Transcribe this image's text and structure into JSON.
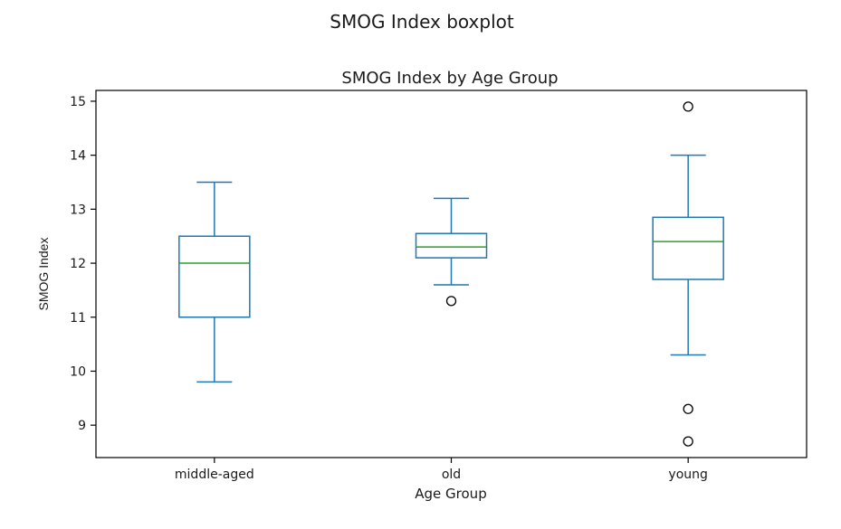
{
  "chart_data": {
    "type": "boxplot",
    "suptitle": "SMOG Index boxplot",
    "title": "SMOG Index by Age Group",
    "xlabel": "Age Group",
    "ylabel": "SMOG Index",
    "ylim": [
      8.4,
      15.2
    ],
    "yticks": [
      9,
      10,
      11,
      12,
      13,
      14,
      15
    ],
    "categories": [
      "middle-aged",
      "old",
      "young"
    ],
    "boxes": [
      {
        "category": "middle-aged",
        "whisker_low": 9.8,
        "q1": 11.0,
        "median": 12.0,
        "q3": 12.5,
        "whisker_high": 13.5,
        "outliers": []
      },
      {
        "category": "old",
        "whisker_low": 11.6,
        "q1": 12.1,
        "median": 12.3,
        "q3": 12.55,
        "whisker_high": 13.2,
        "outliers": [
          11.3
        ]
      },
      {
        "category": "young",
        "whisker_low": 10.3,
        "q1": 11.7,
        "median": 12.4,
        "q3": 12.85,
        "whisker_high": 14.0,
        "outliers": [
          14.9,
          9.3,
          8.7
        ]
      }
    ],
    "grid": false,
    "colors": {
      "box": "#1f77b4",
      "median": "#2ca02c",
      "outlier": "#000000"
    }
  }
}
